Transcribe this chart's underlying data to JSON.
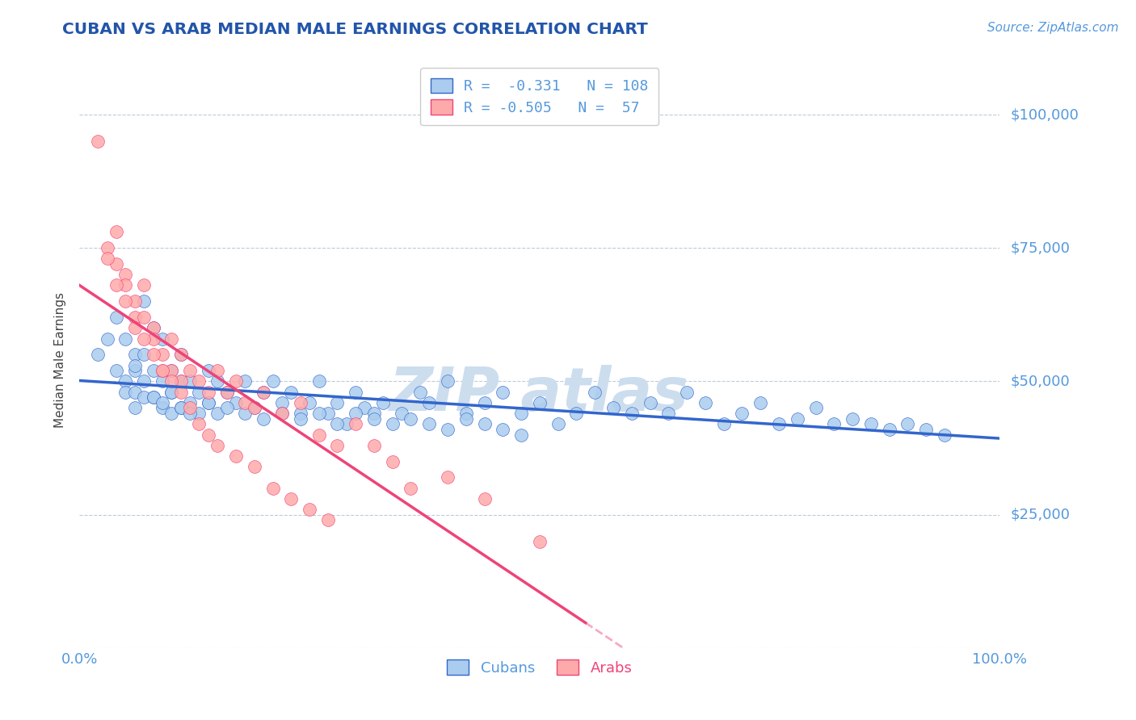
{
  "title": "CUBAN VS ARAB MEDIAN MALE EARNINGS CORRELATION CHART",
  "source_text": "Source: ZipAtlas.com",
  "ylabel": "Median Male Earnings",
  "x_min": 0.0,
  "x_max": 1.0,
  "y_min": 0,
  "y_max": 108000,
  "yticks": [
    0,
    25000,
    50000,
    75000,
    100000
  ],
  "ytick_labels": [
    "",
    "$25,000",
    "$50,000",
    "$75,000",
    "$100,000"
  ],
  "title_color": "#2255aa",
  "axis_color": "#5599dd",
  "cuban_color": "#aaccee",
  "arab_color": "#ffaaaa",
  "cuban_line_color": "#3366cc",
  "arab_line_color": "#ee4477",
  "watermark_color": "#ccddee",
  "legend_R1": "-0.331",
  "legend_N1": "108",
  "legend_R2": "-0.505",
  "legend_N2": "57",
  "cuban_x": [
    0.02,
    0.03,
    0.04,
    0.04,
    0.05,
    0.05,
    0.05,
    0.06,
    0.06,
    0.06,
    0.06,
    0.07,
    0.07,
    0.07,
    0.07,
    0.08,
    0.08,
    0.08,
    0.09,
    0.09,
    0.09,
    0.1,
    0.1,
    0.1,
    0.11,
    0.11,
    0.11,
    0.12,
    0.12,
    0.13,
    0.13,
    0.14,
    0.14,
    0.15,
    0.15,
    0.16,
    0.17,
    0.18,
    0.19,
    0.2,
    0.21,
    0.22,
    0.23,
    0.24,
    0.25,
    0.26,
    0.27,
    0.28,
    0.29,
    0.3,
    0.31,
    0.32,
    0.33,
    0.35,
    0.37,
    0.38,
    0.4,
    0.42,
    0.44,
    0.46,
    0.48,
    0.5,
    0.52,
    0.54,
    0.56,
    0.58,
    0.6,
    0.62,
    0.64,
    0.66,
    0.68,
    0.7,
    0.72,
    0.74,
    0.76,
    0.78,
    0.8,
    0.82,
    0.84,
    0.86,
    0.88,
    0.9,
    0.92,
    0.94,
    0.06,
    0.08,
    0.09,
    0.1,
    0.11,
    0.12,
    0.14,
    0.16,
    0.18,
    0.2,
    0.22,
    0.24,
    0.26,
    0.28,
    0.3,
    0.32,
    0.34,
    0.36,
    0.38,
    0.4,
    0.42,
    0.44,
    0.46,
    0.48
  ],
  "cuban_y": [
    55000,
    58000,
    62000,
    52000,
    58000,
    50000,
    48000,
    55000,
    52000,
    48000,
    45000,
    65000,
    55000,
    50000,
    47000,
    60000,
    52000,
    47000,
    58000,
    50000,
    45000,
    52000,
    48000,
    44000,
    55000,
    50000,
    45000,
    50000,
    46000,
    48000,
    44000,
    52000,
    46000,
    50000,
    44000,
    48000,
    46000,
    50000,
    45000,
    48000,
    50000,
    46000,
    48000,
    44000,
    46000,
    50000,
    44000,
    46000,
    42000,
    48000,
    45000,
    44000,
    46000,
    44000,
    48000,
    46000,
    50000,
    44000,
    46000,
    48000,
    44000,
    46000,
    42000,
    44000,
    48000,
    45000,
    44000,
    46000,
    44000,
    48000,
    46000,
    42000,
    44000,
    46000,
    42000,
    43000,
    45000,
    42000,
    43000,
    42000,
    41000,
    42000,
    41000,
    40000,
    53000,
    47000,
    46000,
    48000,
    45000,
    44000,
    46000,
    45000,
    44000,
    43000,
    44000,
    43000,
    44000,
    42000,
    44000,
    43000,
    42000,
    43000,
    42000,
    41000,
    43000,
    42000,
    41000,
    40000
  ],
  "arab_x": [
    0.02,
    0.03,
    0.04,
    0.04,
    0.05,
    0.05,
    0.06,
    0.06,
    0.07,
    0.07,
    0.08,
    0.08,
    0.09,
    0.09,
    0.1,
    0.1,
    0.11,
    0.11,
    0.12,
    0.13,
    0.14,
    0.15,
    0.16,
    0.17,
    0.18,
    0.19,
    0.2,
    0.22,
    0.24,
    0.26,
    0.28,
    0.3,
    0.32,
    0.34,
    0.36,
    0.4,
    0.44,
    0.5,
    0.03,
    0.04,
    0.05,
    0.06,
    0.07,
    0.08,
    0.09,
    0.1,
    0.11,
    0.12,
    0.13,
    0.14,
    0.15,
    0.17,
    0.19,
    0.21,
    0.23,
    0.25,
    0.27
  ],
  "arab_y": [
    95000,
    75000,
    78000,
    72000,
    70000,
    68000,
    65000,
    62000,
    68000,
    62000,
    60000,
    58000,
    55000,
    52000,
    58000,
    52000,
    55000,
    50000,
    52000,
    50000,
    48000,
    52000,
    48000,
    50000,
    46000,
    45000,
    48000,
    44000,
    46000,
    40000,
    38000,
    42000,
    38000,
    35000,
    30000,
    32000,
    28000,
    20000,
    73000,
    68000,
    65000,
    60000,
    58000,
    55000,
    52000,
    50000,
    48000,
    45000,
    42000,
    40000,
    38000,
    36000,
    34000,
    30000,
    28000,
    26000,
    24000
  ]
}
